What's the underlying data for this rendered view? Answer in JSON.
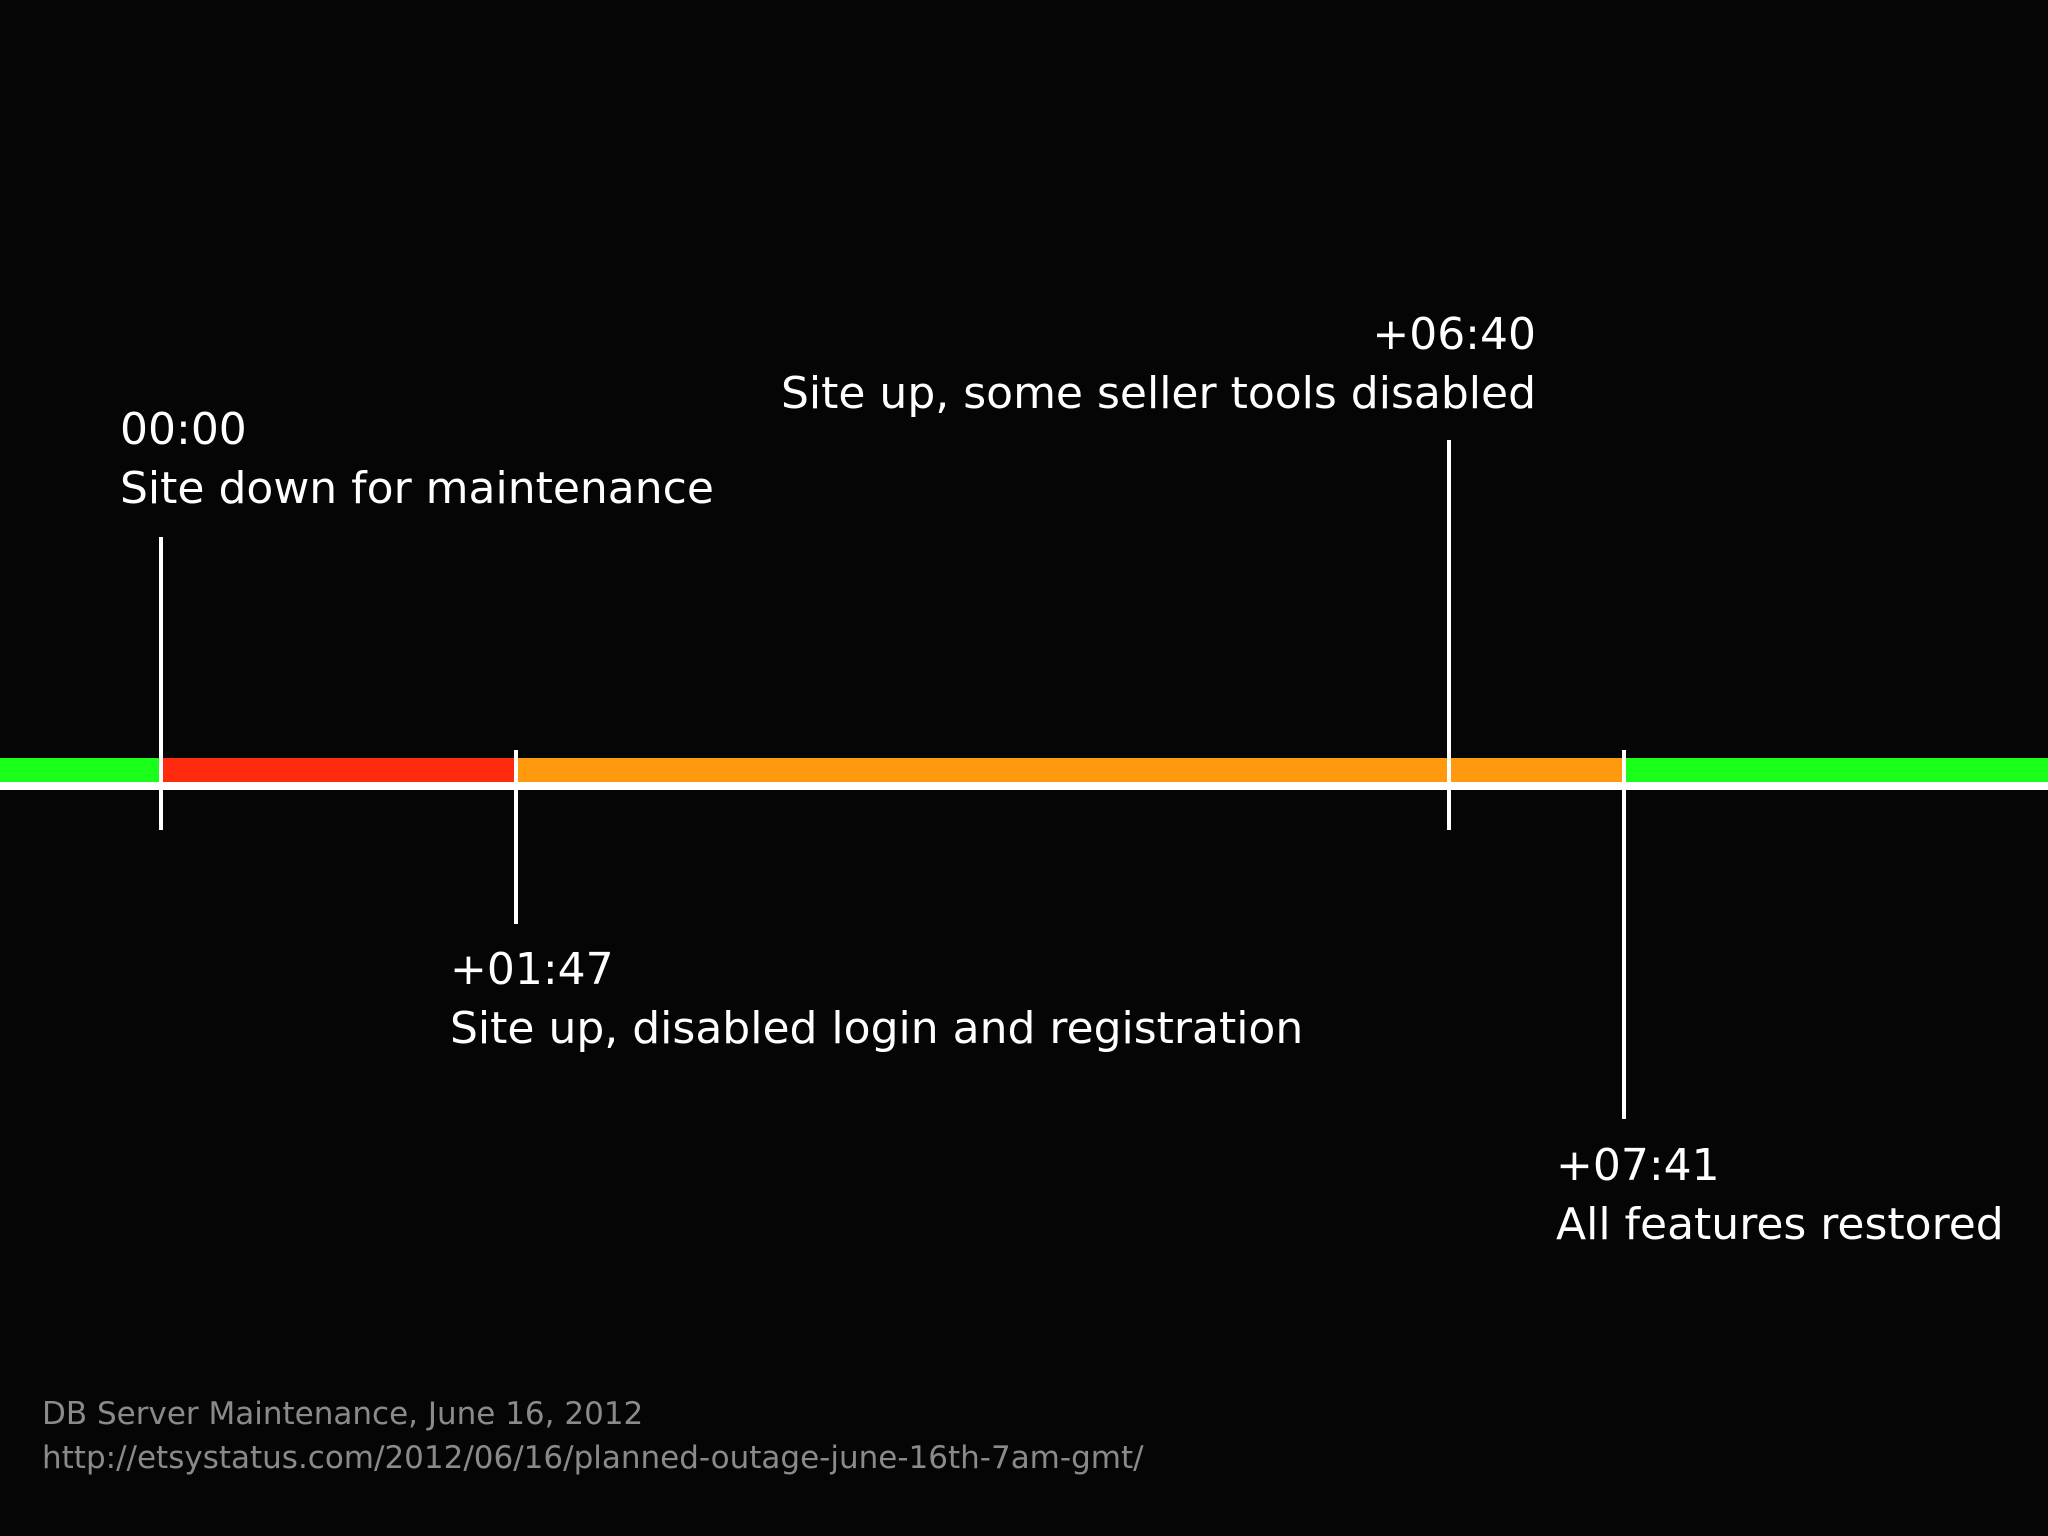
{
  "timeline": {
    "segments": [
      {
        "status": "up",
        "color": "#1aff1a"
      },
      {
        "status": "down",
        "color": "#ff2b0e"
      },
      {
        "status": "degraded",
        "color": "#ff9a0e"
      },
      {
        "status": "up",
        "color": "#1aff1a"
      }
    ],
    "events": [
      {
        "time": "00:00",
        "description": "Site down for maintenance"
      },
      {
        "time": "+01:47",
        "description": "Site up, disabled login and registration"
      },
      {
        "time": "+06:40",
        "description": "Site up, some seller tools disabled"
      },
      {
        "time": "+07:41",
        "description": "All features restored"
      }
    ]
  },
  "footer": {
    "title": "DB Server Maintenance, June 16, 2012",
    "url": "http://etsystatus.com/2012/06/16/planned-outage-june-16th-7am-gmt/"
  }
}
